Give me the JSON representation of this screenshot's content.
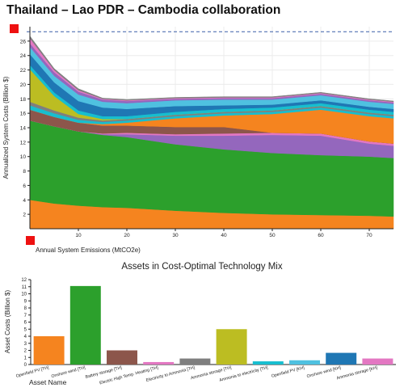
{
  "page_title": "Thailand – Lao PDR – Cambodia collaboration",
  "colors": {
    "marker": "#ee1111"
  },
  "chart_data": [
    {
      "type": "area",
      "stacked": true,
      "title": "",
      "xlabel": "Annual System Emissions (MtCO2e)",
      "ylabel": "Annualized System Costs (Billion $)",
      "xlim": [
        0,
        75
      ],
      "ylim": [
        0,
        28
      ],
      "xticks": [
        10,
        20,
        30,
        40,
        50,
        60,
        70
      ],
      "yticks": [
        2,
        4,
        6,
        8,
        10,
        12,
        14,
        16,
        18,
        20,
        22,
        24,
        26
      ],
      "reference_line": {
        "y": 27.3,
        "style": "dashed",
        "color": "#3a5fa8"
      },
      "x": [
        0,
        5,
        10,
        15,
        20,
        30,
        40,
        50,
        60,
        70,
        75
      ],
      "series": [
        {
          "color": "#f5841f",
          "values": [
            4.0,
            3.5,
            3.2,
            3.0,
            2.9,
            2.5,
            2.2,
            2.0,
            1.9,
            1.8,
            1.7
          ]
        },
        {
          "color": "#2ca02c",
          "values": [
            11.0,
            10.7,
            10.3,
            10.0,
            9.8,
            9.2,
            8.8,
            8.5,
            8.3,
            8.2,
            8.1
          ]
        },
        {
          "color": "#9467bd",
          "values": [
            0.0,
            0.0,
            0.0,
            0.1,
            0.4,
            1.2,
            1.9,
            2.5,
            2.7,
            1.8,
            1.7
          ]
        },
        {
          "color": "#e377c2",
          "values": [
            0.0,
            0.0,
            0.0,
            0.1,
            0.2,
            0.2,
            0.3,
            0.3,
            0.3,
            0.3,
            0.3
          ]
        },
        {
          "color": "#8c564b",
          "values": [
            1.5,
            1.3,
            1.2,
            1.1,
            1.0,
            1.0,
            0.9,
            0.0,
            0.0,
            0.0,
            0.0
          ]
        },
        {
          "color": "#f5841f",
          "values": [
            0.0,
            0.0,
            0.0,
            0.2,
            0.4,
            1.2,
            1.6,
            2.6,
            3.3,
            3.5,
            3.5
          ]
        },
        {
          "color": "#17becf",
          "values": [
            0.6,
            0.5,
            0.4,
            0.3,
            0.3,
            0.3,
            0.3,
            0.3,
            0.3,
            0.3,
            0.3
          ]
        },
        {
          "color": "#7f7f7f",
          "values": [
            0.5,
            0.4,
            0.3,
            0.2,
            0.2,
            0.2,
            0.2,
            0.2,
            0.2,
            0.2,
            0.2
          ]
        },
        {
          "color": "#bcbd22",
          "values": [
            4.5,
            2.0,
            0.5,
            0.2,
            0.0,
            0.0,
            0.0,
            0.0,
            0.0,
            0.0,
            0.0
          ]
        },
        {
          "color": "#17becf",
          "values": [
            0.6,
            0.5,
            0.5,
            0.4,
            0.4,
            0.4,
            0.4,
            0.4,
            0.4,
            0.4,
            0.4
          ]
        },
        {
          "color": "#1f77b4",
          "values": [
            1.5,
            1.4,
            1.3,
            1.2,
            1.0,
            0.8,
            0.5,
            0.4,
            0.4,
            0.4,
            0.4
          ]
        },
        {
          "color": "#4fc1e0",
          "values": [
            1.0,
            0.9,
            0.9,
            0.8,
            0.8,
            0.8,
            0.8,
            0.7,
            0.7,
            0.7,
            0.7
          ]
        },
        {
          "color": "#9467bd",
          "values": [
            0.5,
            0.5,
            0.4,
            0.3,
            0.3,
            0.2,
            0.2,
            0.2,
            0.2,
            0.2,
            0.2
          ]
        },
        {
          "color": "#e377c2",
          "values": [
            0.7,
            0.3,
            0.2,
            0.1,
            0.1,
            0.1,
            0.1,
            0.1,
            0.1,
            0.1,
            0.1
          ]
        },
        {
          "color": "#7f7f7f",
          "values": [
            0.3,
            0.2,
            0.2,
            0.1,
            0.1,
            0.1,
            0.1,
            0.1,
            0.1,
            0.1,
            0.1
          ]
        }
      ]
    },
    {
      "type": "bar",
      "title": "Assets in Cost-Optimal Technology Mix",
      "xlabel": "Asset Name",
      "ylabel": "Asset Costs (Billion $)",
      "ylim": [
        0,
        12
      ],
      "yticks": [
        0,
        1,
        2,
        3,
        4,
        5,
        6,
        7,
        8,
        9,
        10,
        11,
        12
      ],
      "categories": [
        "Openfield PV [TH]",
        "Onshore wind [TH]",
        "Battery storage [TH]",
        "Electric High Temp. Heating [TH]",
        "Electricity to Ammonia [TH]",
        "Ammonia storage [TH]",
        "Ammonia to electricity [TH]",
        "Openfield PV [KH]",
        "Onshore wind [KH]",
        "Ammonia storage [KH]"
      ],
      "values": [
        4.0,
        11.1,
        2.0,
        0.35,
        0.85,
        5.0,
        0.45,
        0.6,
        1.65,
        0.85
      ],
      "colors": [
        "#f5841f",
        "#2ca02c",
        "#8c564b",
        "#e377c2",
        "#7f7f7f",
        "#bcbd22",
        "#17becf",
        "#4fc1e0",
        "#1f77b4",
        "#e377c2"
      ]
    }
  ]
}
